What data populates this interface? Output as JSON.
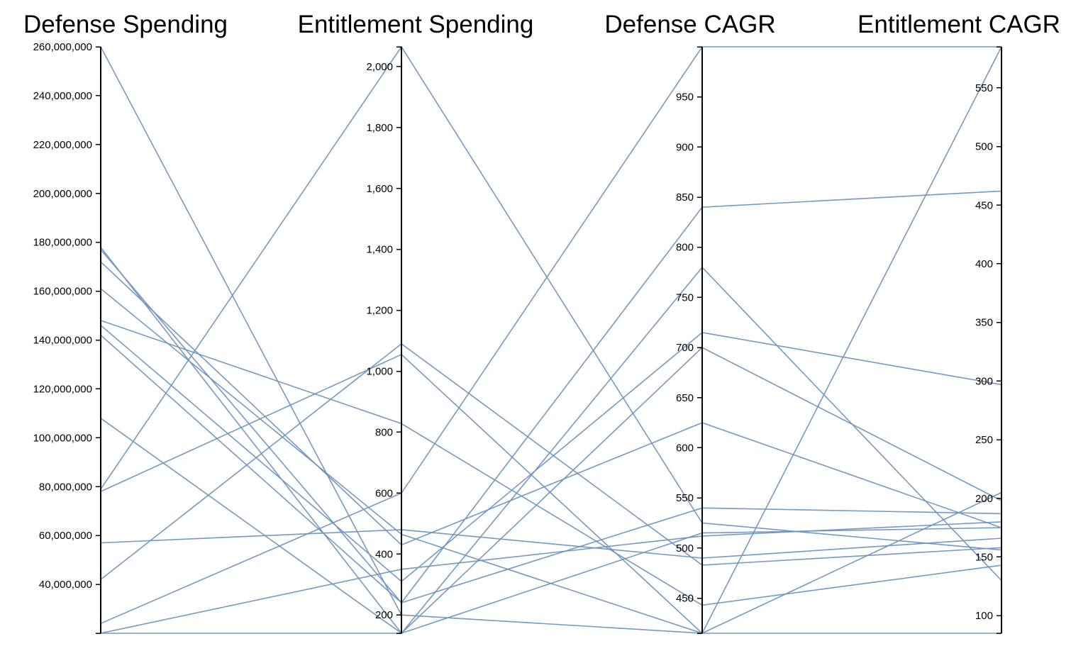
{
  "chart_data": {
    "type": "parallel-coordinates",
    "line_color": "#6f94bf",
    "axes": [
      {
        "label": "Defense Spending",
        "range": [
          20000000,
          260000000
        ],
        "ticks": [
          {
            "value": 40000000,
            "label": "40,000,000"
          },
          {
            "value": 60000000,
            "label": "60,000,000"
          },
          {
            "value": 80000000,
            "label": "80,000,000"
          },
          {
            "value": 100000000,
            "label": "100,000,000"
          },
          {
            "value": 120000000,
            "label": "120,000,000"
          },
          {
            "value": 140000000,
            "label": "140,000,000"
          },
          {
            "value": 160000000,
            "label": "160,000,000"
          },
          {
            "value": 180000000,
            "label": "180,000,000"
          },
          {
            "value": 200000000,
            "label": "200,000,000"
          },
          {
            "value": 220000000,
            "label": "220,000,000"
          },
          {
            "value": 240000000,
            "label": "240,000,000"
          },
          {
            "value": 260000000,
            "label": "260,000,000"
          }
        ]
      },
      {
        "label": "Entitlement Spending",
        "range": [
          140,
          2065
        ],
        "ticks": [
          {
            "value": 200,
            "label": "200"
          },
          {
            "value": 400,
            "label": "400"
          },
          {
            "value": 600,
            "label": "600"
          },
          {
            "value": 800,
            "label": "800"
          },
          {
            "value": 1000,
            "label": "1,000"
          },
          {
            "value": 1200,
            "label": "1,200"
          },
          {
            "value": 1400,
            "label": "1,400"
          },
          {
            "value": 1600,
            "label": "1,600"
          },
          {
            "value": 1800,
            "label": "1,800"
          },
          {
            "value": 2000,
            "label": "2,000"
          }
        ]
      },
      {
        "label": "Defense CAGR",
        "range": [
          415,
          1000
        ],
        "ticks": [
          {
            "value": 450,
            "label": "450"
          },
          {
            "value": 500,
            "label": "500"
          },
          {
            "value": 550,
            "label": "550"
          },
          {
            "value": 600,
            "label": "600"
          },
          {
            "value": 650,
            "label": "650"
          },
          {
            "value": 700,
            "label": "700"
          },
          {
            "value": 750,
            "label": "750"
          },
          {
            "value": 800,
            "label": "800"
          },
          {
            "value": 850,
            "label": "850"
          },
          {
            "value": 900,
            "label": "900"
          },
          {
            "value": 950,
            "label": "950"
          }
        ]
      },
      {
        "label": "Entitlement CAGR",
        "range": [
          85,
          585
        ],
        "ticks": [
          {
            "value": 100,
            "label": "100"
          },
          {
            "value": 150,
            "label": "150"
          },
          {
            "value": 200,
            "label": "200"
          },
          {
            "value": 250,
            "label": "250"
          },
          {
            "value": 300,
            "label": "300"
          },
          {
            "value": 350,
            "label": "350"
          },
          {
            "value": 400,
            "label": "400"
          },
          {
            "value": 450,
            "label": "450"
          },
          {
            "value": 500,
            "label": "500"
          },
          {
            "value": 550,
            "label": "550"
          }
        ]
      }
    ],
    "records": [
      [
        260000000,
        200,
        415,
        585
      ],
      [
        178000000,
        140,
        700,
        198
      ],
      [
        177000000,
        240,
        840,
        462
      ],
      [
        172000000,
        430,
        625,
        175
      ],
      [
        161000000,
        465,
        415,
        205
      ],
      [
        148000000,
        828,
        443,
        143
      ],
      [
        146000000,
        310,
        715,
        297
      ],
      [
        142000000,
        240,
        540,
        187
      ],
      [
        108000000,
        140,
        780,
        130
      ],
      [
        79000000,
        2065,
        525,
        156
      ],
      [
        78000000,
        1055,
        415,
        85
      ],
      [
        57000000,
        480,
        490,
        166
      ],
      [
        42000000,
        1090,
        483,
        158
      ],
      [
        24000000,
        600,
        1000,
        585
      ],
      [
        20000000,
        350,
        512,
        180
      ],
      [
        20000000,
        140,
        515,
        175
      ]
    ]
  }
}
